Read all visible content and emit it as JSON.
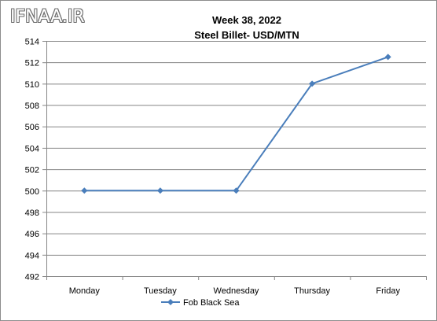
{
  "logo": "IFNAA.IR",
  "chart_data": {
    "type": "line",
    "title": "Week 38, 2022",
    "subtitle": "Steel Billet- USD/MTN",
    "categories": [
      "Monday",
      "Tuesday",
      "Wednesday",
      "Thursday",
      "Friday"
    ],
    "series": [
      {
        "name": "Fob Black Sea",
        "values": [
          500,
          500,
          500,
          510,
          512.5
        ]
      }
    ],
    "ylim": [
      492,
      514
    ],
    "yticks": [
      492,
      494,
      496,
      498,
      500,
      502,
      504,
      506,
      508,
      510,
      512,
      514
    ],
    "grid": true,
    "legend": "bottom",
    "colors": {
      "series": "#4a7ebb",
      "marker": "#4a7ebb",
      "grid": "#868686",
      "axis": "#868686"
    }
  }
}
